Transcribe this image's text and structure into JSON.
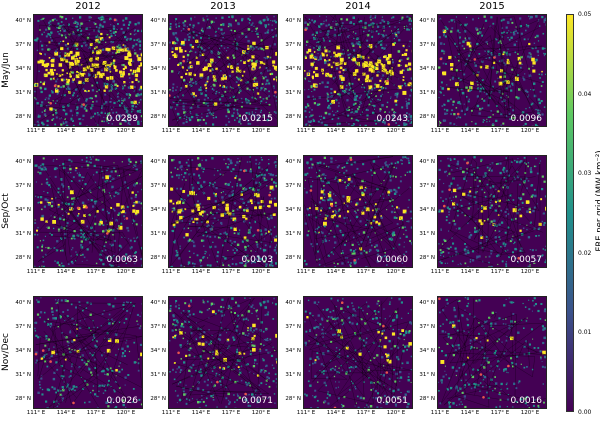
{
  "columns": [
    "2012",
    "2013",
    "2014",
    "2015"
  ],
  "rows": [
    "May/Jun",
    "Sep/Oct",
    "Nov/Dec"
  ],
  "lat_labels": [
    "40° N",
    "37° N",
    "34° N",
    "31° N",
    "28° N"
  ],
  "lon_labels": [
    "111° E",
    "114° E",
    "117° E",
    "120° E"
  ],
  "values": [
    [
      "0.0289",
      "0.0215",
      "0.0243",
      "0.0096"
    ],
    [
      "0.0063",
      "0.0103",
      "0.0060",
      "0.0057"
    ],
    [
      "0.0026",
      "0.0071",
      "0.0051",
      "0.0016"
    ]
  ],
  "density": [
    [
      0.9,
      0.65,
      0.8,
      0.35
    ],
    [
      0.35,
      0.5,
      0.3,
      0.3
    ],
    [
      0.12,
      0.3,
      0.22,
      0.1
    ]
  ],
  "colorbar": {
    "title": "FRE per grid (MW km⁻²)",
    "ticks": [
      "0.05",
      "0.04",
      "0.03",
      "0.02",
      "0.01",
      "0.00"
    ],
    "colors": [
      "#440154",
      "#3b528b",
      "#21918c",
      "#5ec962",
      "#fde725"
    ]
  }
}
